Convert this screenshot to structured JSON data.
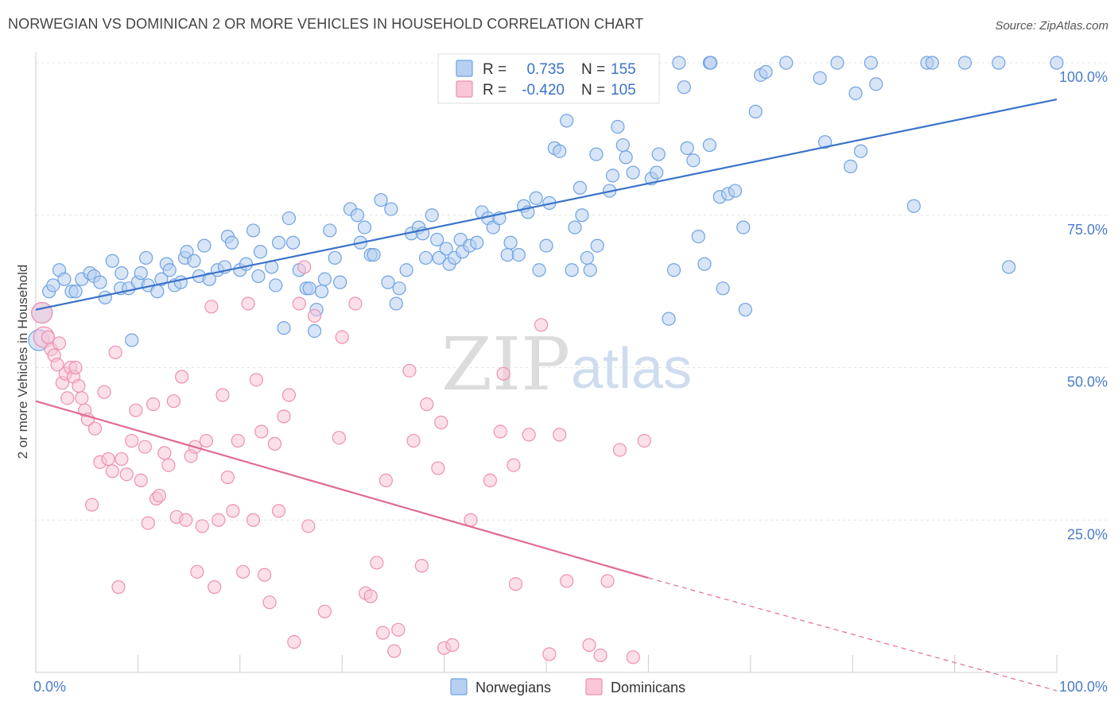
{
  "title": "NORWEGIAN VS DOMINICAN 2 OR MORE VEHICLES IN HOUSEHOLD CORRELATION CHART",
  "source": "Source: ZipAtlas.com",
  "watermark": {
    "zip": "ZIP",
    "atlas": "atlas"
  },
  "colors": {
    "norwegian": "#6fa2e2",
    "norwegian_fill": "#b7cff1",
    "norwegian_line": "#3b73c8",
    "dominican": "#ee8fb1",
    "dominican_fill": "#f8c6d7",
    "dominican_line": "#e06a95",
    "tick": "#4a7cc9",
    "grid": "#e3e3e3"
  },
  "legend_top": [
    {
      "r_label": "R =",
      "r_value": "0.735",
      "n_label": "N =",
      "n_value": "155"
    },
    {
      "r_label": "R =",
      "r_value": "-0.420",
      "n_label": "N =",
      "n_value": "105"
    }
  ],
  "legend_bottom": [
    "Norwegians",
    "Dominicans"
  ],
  "chart_data": {
    "type": "scatter",
    "title": "NORWEGIAN VS DOMINICAN 2 OR MORE VEHICLES IN HOUSEHOLD CORRELATION CHART",
    "xlabel": "",
    "ylabel": "2 or more Vehicles in Household",
    "xlim": [
      0,
      100
    ],
    "ylim": [
      0,
      100
    ],
    "x_tick_labels": [
      "0.0%",
      "100.0%"
    ],
    "y_ticks": [
      25,
      50,
      75,
      100
    ],
    "y_tick_labels": [
      "25.0%",
      "50.0%",
      "75.0%",
      "100.0%"
    ],
    "grid": true,
    "legend_position": "top-center",
    "series": [
      {
        "name": "Norwegians",
        "r": 0.735,
        "n": 155,
        "trend": {
          "x": [
            0,
            100
          ],
          "y": [
            59.5,
            94
          ]
        },
        "points": [
          [
            0.3,
            54.5
          ],
          [
            0.6,
            59
          ],
          [
            1.3,
            62.5
          ],
          [
            1.7,
            63.5
          ],
          [
            2.3,
            66
          ],
          [
            2.8,
            64.5
          ],
          [
            3.5,
            62.5
          ],
          [
            3.9,
            62.5
          ],
          [
            4.5,
            64.5
          ],
          [
            5.3,
            65.5
          ],
          [
            5.7,
            65
          ],
          [
            6.3,
            64
          ],
          [
            6.8,
            61.5
          ],
          [
            7.5,
            67.5
          ],
          [
            8.3,
            63
          ],
          [
            8.4,
            65.5
          ],
          [
            9.1,
            63
          ],
          [
            9.4,
            54.5
          ],
          [
            10,
            64
          ],
          [
            10.3,
            65.5
          ],
          [
            10.8,
            68
          ],
          [
            11,
            63.5
          ],
          [
            11.9,
            62.5
          ],
          [
            12.3,
            64.5
          ],
          [
            12.8,
            67
          ],
          [
            13.1,
            66
          ],
          [
            13.6,
            63.5
          ],
          [
            14.2,
            64
          ],
          [
            14.6,
            68
          ],
          [
            14.8,
            69
          ],
          [
            15.5,
            67.5
          ],
          [
            16,
            65
          ],
          [
            16.5,
            70
          ],
          [
            17,
            64.5
          ],
          [
            17.8,
            66
          ],
          [
            18.5,
            66.5
          ],
          [
            18.8,
            71.5
          ],
          [
            19.2,
            70.5
          ],
          [
            20,
            66
          ],
          [
            20.6,
            67
          ],
          [
            21.3,
            72.5
          ],
          [
            21.8,
            65
          ],
          [
            22,
            69
          ],
          [
            23.1,
            66.5
          ],
          [
            23.5,
            63.5
          ],
          [
            23.8,
            70.5
          ],
          [
            24.3,
            56.5
          ],
          [
            24.8,
            74.5
          ],
          [
            25.2,
            70.5
          ],
          [
            25.8,
            66
          ],
          [
            26.5,
            63
          ],
          [
            26.8,
            63
          ],
          [
            27.3,
            56
          ],
          [
            27.5,
            59.5
          ],
          [
            28,
            62.5
          ],
          [
            28.3,
            64.5
          ],
          [
            28.8,
            72.5
          ],
          [
            29.3,
            68
          ],
          [
            29.8,
            64
          ],
          [
            30.8,
            76
          ],
          [
            31.5,
            75
          ],
          [
            31.8,
            70.5
          ],
          [
            32.2,
            73
          ],
          [
            32.8,
            68.5
          ],
          [
            33.1,
            68.5
          ],
          [
            33.8,
            77.5
          ],
          [
            34.5,
            64
          ],
          [
            34.8,
            76
          ],
          [
            35.3,
            60.5
          ],
          [
            35.6,
            63
          ],
          [
            36.3,
            66
          ],
          [
            36.8,
            72
          ],
          [
            37.5,
            73
          ],
          [
            37.9,
            72
          ],
          [
            38.2,
            68
          ],
          [
            38.8,
            75
          ],
          [
            39.3,
            71
          ],
          [
            39.5,
            68
          ],
          [
            40.2,
            69.5
          ],
          [
            40.5,
            67
          ],
          [
            41,
            68
          ],
          [
            41.6,
            71
          ],
          [
            41.8,
            69
          ],
          [
            42.5,
            70
          ],
          [
            43.2,
            70.5
          ],
          [
            43.7,
            75.5
          ],
          [
            44.3,
            74.5
          ],
          [
            44.8,
            73
          ],
          [
            45.4,
            74.5
          ],
          [
            46.2,
            68.5
          ],
          [
            46.5,
            70.5
          ],
          [
            47.3,
            68.5
          ],
          [
            47.8,
            76.5
          ],
          [
            48.2,
            75.5
          ],
          [
            49,
            77.8
          ],
          [
            49.3,
            66
          ],
          [
            50,
            70
          ],
          [
            50.3,
            77
          ],
          [
            50.8,
            86
          ],
          [
            51.3,
            85.5
          ],
          [
            52,
            90.5
          ],
          [
            52.5,
            66
          ],
          [
            52.8,
            73
          ],
          [
            53.3,
            79.5
          ],
          [
            53.5,
            75
          ],
          [
            54,
            68
          ],
          [
            54.3,
            66
          ],
          [
            54.9,
            85
          ],
          [
            55,
            70
          ],
          [
            56.2,
            79
          ],
          [
            56.5,
            81.5
          ],
          [
            57,
            89.5
          ],
          [
            57.5,
            86.5
          ],
          [
            57.8,
            84.5
          ],
          [
            58.5,
            82
          ],
          [
            60.3,
            81
          ],
          [
            60.8,
            82
          ],
          [
            61,
            85
          ],
          [
            62,
            58
          ],
          [
            62.5,
            66
          ],
          [
            63.5,
            96
          ],
          [
            63.8,
            86
          ],
          [
            64.4,
            84
          ],
          [
            64.9,
            71.5
          ],
          [
            65.5,
            67
          ],
          [
            66,
            86.5
          ],
          [
            67,
            78
          ],
          [
            67.3,
            63
          ],
          [
            67.8,
            78.5
          ],
          [
            68.5,
            79
          ],
          [
            69.3,
            73
          ],
          [
            69.5,
            59.5
          ],
          [
            70.5,
            92
          ],
          [
            71,
            98
          ],
          [
            71.5,
            98.5
          ],
          [
            73.5,
            100
          ],
          [
            76.8,
            97.5
          ],
          [
            77.3,
            87
          ],
          [
            78.5,
            100
          ],
          [
            79.8,
            83
          ],
          [
            80.3,
            95
          ],
          [
            80.8,
            85.5
          ],
          [
            81.8,
            100
          ],
          [
            82.3,
            96.5
          ],
          [
            86,
            76.5
          ],
          [
            87.3,
            100
          ],
          [
            87.8,
            100
          ],
          [
            91,
            100
          ],
          [
            94.3,
            100
          ],
          [
            95.3,
            66.5
          ],
          [
            100,
            100
          ],
          [
            66,
            100
          ],
          [
            63,
            100
          ],
          [
            59.5,
            100
          ],
          [
            60,
            100
          ],
          [
            66.1,
            100
          ]
        ]
      },
      {
        "name": "Dominicans",
        "r": -0.42,
        "n": 105,
        "trend": {
          "x": [
            0,
            60
          ],
          "y": [
            44.5,
            15.5
          ],
          "dashed_x": [
            60,
            100
          ],
          "dashed_y": [
            15.5,
            -3
          ]
        },
        "points": [
          [
            0.6,
            59
          ],
          [
            0.8,
            55
          ],
          [
            1.2,
            55
          ],
          [
            1.5,
            53
          ],
          [
            1.8,
            52
          ],
          [
            2.1,
            50.5
          ],
          [
            2.3,
            54
          ],
          [
            2.6,
            47.5
          ],
          [
            2.9,
            49
          ],
          [
            3.1,
            45
          ],
          [
            3.4,
            50
          ],
          [
            3.7,
            48.5
          ],
          [
            3.9,
            50
          ],
          [
            4.2,
            47
          ],
          [
            4.5,
            45
          ],
          [
            4.8,
            43
          ],
          [
            5.1,
            41.5
          ],
          [
            5.5,
            27.5
          ],
          [
            5.8,
            40
          ],
          [
            6.3,
            34.5
          ],
          [
            6.7,
            46
          ],
          [
            7.1,
            35
          ],
          [
            7.5,
            33
          ],
          [
            7.8,
            52.5
          ],
          [
            8.1,
            14
          ],
          [
            8.4,
            35
          ],
          [
            8.9,
            32.5
          ],
          [
            9.4,
            38
          ],
          [
            9.8,
            43
          ],
          [
            10.3,
            31.5
          ],
          [
            10.7,
            37
          ],
          [
            11,
            24.5
          ],
          [
            11.5,
            44
          ],
          [
            11.8,
            28.5
          ],
          [
            12.1,
            29
          ],
          [
            12.6,
            36
          ],
          [
            13,
            34
          ],
          [
            13.5,
            44.5
          ],
          [
            13.8,
            25.5
          ],
          [
            14.3,
            48.5
          ],
          [
            14.7,
            25
          ],
          [
            15.2,
            35.5
          ],
          [
            15.6,
            37
          ],
          [
            15.8,
            16.5
          ],
          [
            16.3,
            24
          ],
          [
            16.7,
            38
          ],
          [
            17.2,
            60
          ],
          [
            17.5,
            14
          ],
          [
            17.9,
            25
          ],
          [
            18.3,
            45.5
          ],
          [
            18.8,
            32
          ],
          [
            19.3,
            26.5
          ],
          [
            19.8,
            38
          ],
          [
            20.3,
            16.5
          ],
          [
            20.8,
            60.5
          ],
          [
            21.3,
            25
          ],
          [
            21.6,
            48
          ],
          [
            22.1,
            39.5
          ],
          [
            22.4,
            16
          ],
          [
            22.9,
            11.5
          ],
          [
            23.4,
            37.5
          ],
          [
            23.8,
            26.5
          ],
          [
            24.3,
            42
          ],
          [
            24.8,
            45.5
          ],
          [
            25.3,
            5
          ],
          [
            25.8,
            60.5
          ],
          [
            26.3,
            66.5
          ],
          [
            26.7,
            24
          ],
          [
            27.3,
            58.5
          ],
          [
            28.3,
            10
          ],
          [
            29.7,
            38.5
          ],
          [
            30,
            55
          ],
          [
            31.3,
            60.5
          ],
          [
            32.3,
            13
          ],
          [
            32.8,
            12.5
          ],
          [
            33.4,
            18
          ],
          [
            34,
            6.5
          ],
          [
            34.3,
            31.5
          ],
          [
            35.1,
            3.5
          ],
          [
            35.5,
            7
          ],
          [
            36.6,
            49.5
          ],
          [
            37,
            38
          ],
          [
            37.8,
            17.5
          ],
          [
            38.3,
            44
          ],
          [
            39.4,
            33.5
          ],
          [
            39.7,
            41
          ],
          [
            40,
            4
          ],
          [
            40.8,
            4.5
          ],
          [
            42.6,
            25
          ],
          [
            44.5,
            31.5
          ],
          [
            45.5,
            39.5
          ],
          [
            45.8,
            49
          ],
          [
            46.8,
            34
          ],
          [
            47,
            14.5
          ],
          [
            48.3,
            39
          ],
          [
            49.5,
            57
          ],
          [
            50.3,
            3
          ],
          [
            51.3,
            39
          ],
          [
            52,
            15
          ],
          [
            54.2,
            4.5
          ],
          [
            55.3,
            2.8
          ],
          [
            56,
            15
          ],
          [
            57.2,
            36.5
          ],
          [
            58.5,
            2.5
          ],
          [
            59.6,
            38
          ]
        ]
      }
    ]
  }
}
